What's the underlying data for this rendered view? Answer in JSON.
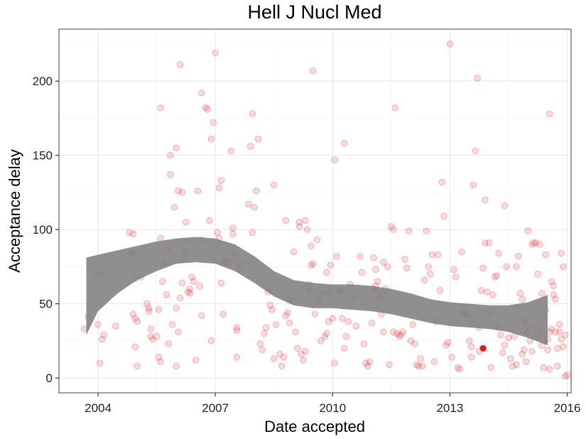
{
  "chart_data": {
    "type": "scatter",
    "title": "Hell J Nucl Med",
    "xlabel": "Date accepted",
    "ylabel": "Acceptance delay",
    "xlim": [
      2003.0,
      2016.1
    ],
    "ylim": [
      -10,
      235
    ],
    "x_ticks": [
      2004,
      2007,
      2010,
      2013,
      2016
    ],
    "x_tick_labels": [
      "2004",
      "2007",
      "2010",
      "2013",
      "2016"
    ],
    "y_ticks": [
      0,
      50,
      100,
      150,
      200
    ],
    "y_tick_labels": [
      "0",
      "50",
      "100",
      "150",
      "200"
    ],
    "grid": true,
    "colors": {
      "points": "#e41a1c",
      "band": "#808080",
      "grid": "#ebebeb",
      "border": "#7f7f7f"
    },
    "highlight_point": {
      "x": 2013.85,
      "y": 20
    },
    "smooth_band": {
      "x": [
        2003.7,
        2004.0,
        2004.5,
        2005.0,
        2005.5,
        2006.0,
        2006.5,
        2007.0,
        2007.5,
        2008.0,
        2008.5,
        2009.0,
        2009.5,
        2010.0,
        2010.5,
        2011.0,
        2011.5,
        2012.0,
        2012.5,
        2013.0,
        2013.5,
        2014.0,
        2014.5,
        2015.0,
        2015.5
      ],
      "upper": [
        81,
        83,
        86,
        89,
        92,
        94,
        95,
        94,
        90,
        82,
        72,
        66,
        64,
        63,
        63,
        62,
        60,
        57,
        53,
        51,
        50,
        49,
        49,
        51,
        56
      ],
      "lower": [
        29,
        45,
        57,
        66,
        72,
        77,
        78,
        77,
        72,
        64,
        55,
        49,
        47,
        47,
        46,
        45,
        43,
        40,
        37,
        35,
        34,
        33,
        31,
        27,
        22
      ]
    },
    "points": [
      [
        2003.65,
        33
      ],
      [
        2003.75,
        41
      ],
      [
        2003.95,
        69
      ],
      [
        2004.0,
        36
      ],
      [
        2004.05,
        10
      ],
      [
        2004.1,
        70
      ],
      [
        2004.1,
        26
      ],
      [
        2004.15,
        29
      ],
      [
        2004.45,
        35
      ],
      [
        2004.8,
        98
      ],
      [
        2004.85,
        84
      ],
      [
        2004.9,
        97
      ],
      [
        2004.9,
        84
      ],
      [
        2004.9,
        43
      ],
      [
        2004.95,
        67
      ],
      [
        2004.95,
        40
      ],
      [
        2004.95,
        21
      ],
      [
        2005.0,
        8
      ],
      [
        2005.0,
        38
      ],
      [
        2005.1,
        68
      ],
      [
        2005.25,
        50
      ],
      [
        2005.3,
        47
      ],
      [
        2005.3,
        45
      ],
      [
        2005.35,
        33
      ],
      [
        2005.35,
        28
      ],
      [
        2005.4,
        26
      ],
      [
        2005.5,
        28
      ],
      [
        2005.55,
        46
      ],
      [
        2005.55,
        14
      ],
      [
        2005.6,
        11
      ],
      [
        2005.6,
        94
      ],
      [
        2005.6,
        182
      ],
      [
        2005.65,
        65
      ],
      [
        2005.7,
        78
      ],
      [
        2005.75,
        56
      ],
      [
        2005.8,
        87
      ],
      [
        2005.8,
        23
      ],
      [
        2005.85,
        150
      ],
      [
        2005.85,
        137
      ],
      [
        2005.9,
        36
      ],
      [
        2005.95,
        115
      ],
      [
        2006.0,
        155
      ],
      [
        2006.0,
        47
      ],
      [
        2006.0,
        8
      ],
      [
        2006.05,
        31
      ],
      [
        2006.05,
        126
      ],
      [
        2006.1,
        211
      ],
      [
        2006.1,
        54
      ],
      [
        2006.15,
        125
      ],
      [
        2006.15,
        64
      ],
      [
        2006.2,
        82
      ],
      [
        2006.25,
        92
      ],
      [
        2006.25,
        105
      ],
      [
        2006.25,
        85
      ],
      [
        2006.3,
        58
      ],
      [
        2006.35,
        60
      ],
      [
        2006.35,
        57
      ],
      [
        2006.4,
        68
      ],
      [
        2006.45,
        65
      ],
      [
        2006.5,
        12
      ],
      [
        2006.55,
        126
      ],
      [
        2006.6,
        62
      ],
      [
        2006.65,
        192
      ],
      [
        2006.65,
        93
      ],
      [
        2006.65,
        42
      ],
      [
        2006.75,
        182
      ],
      [
        2006.8,
        181
      ],
      [
        2006.85,
        106
      ],
      [
        2006.9,
        25
      ],
      [
        2006.9,
        161
      ],
      [
        2006.95,
        172
      ],
      [
        2007.0,
        219
      ],
      [
        2007.05,
        98
      ],
      [
        2007.1,
        94
      ],
      [
        2007.1,
        128
      ],
      [
        2007.15,
        133
      ],
      [
        2007.15,
        64
      ],
      [
        2007.2,
        43
      ],
      [
        2007.25,
        79
      ],
      [
        2007.25,
        78
      ],
      [
        2007.35,
        78
      ],
      [
        2007.4,
        153
      ],
      [
        2007.45,
        101
      ],
      [
        2007.45,
        97
      ],
      [
        2007.5,
        84
      ],
      [
        2007.55,
        32
      ],
      [
        2007.55,
        14
      ],
      [
        2007.55,
        34
      ],
      [
        2007.6,
        74
      ],
      [
        2007.65,
        77
      ],
      [
        2007.85,
        117
      ],
      [
        2007.9,
        156
      ],
      [
        2007.95,
        98
      ],
      [
        2007.95,
        178
      ],
      [
        2008.0,
        115
      ],
      [
        2008.05,
        126
      ],
      [
        2008.1,
        161
      ],
      [
        2008.15,
        23
      ],
      [
        2008.2,
        19
      ],
      [
        2008.25,
        30
      ],
      [
        2008.3,
        34
      ],
      [
        2008.35,
        58
      ],
      [
        2008.4,
        49
      ],
      [
        2008.45,
        46
      ],
      [
        2008.5,
        130
      ],
      [
        2008.5,
        13
      ],
      [
        2008.55,
        36
      ],
      [
        2008.65,
        16
      ],
      [
        2008.7,
        8
      ],
      [
        2008.75,
        14
      ],
      [
        2008.8,
        106
      ],
      [
        2008.8,
        42
      ],
      [
        2008.85,
        44
      ],
      [
        2008.9,
        53
      ],
      [
        2008.9,
        37
      ],
      [
        2009.0,
        85
      ],
      [
        2009.05,
        31
      ],
      [
        2009.1,
        20
      ],
      [
        2009.15,
        105
      ],
      [
        2009.15,
        102
      ],
      [
        2009.2,
        16
      ],
      [
        2009.25,
        12
      ],
      [
        2009.3,
        106
      ],
      [
        2009.3,
        18
      ],
      [
        2009.35,
        100
      ],
      [
        2009.4,
        59
      ],
      [
        2009.4,
        63
      ],
      [
        2009.45,
        76
      ],
      [
        2009.45,
        89
      ],
      [
        2009.5,
        77
      ],
      [
        2009.5,
        207
      ],
      [
        2009.55,
        43
      ],
      [
        2009.6,
        93
      ],
      [
        2009.65,
        53
      ],
      [
        2009.65,
        51
      ],
      [
        2009.7,
        25
      ],
      [
        2009.75,
        57
      ],
      [
        2009.8,
        28
      ],
      [
        2009.85,
        71
      ],
      [
        2009.85,
        30
      ],
      [
        2009.9,
        38
      ],
      [
        2009.9,
        58
      ],
      [
        2009.95,
        76
      ],
      [
        2010.0,
        40
      ],
      [
        2010.05,
        147
      ],
      [
        2010.05,
        10
      ],
      [
        2010.1,
        82
      ],
      [
        2010.15,
        58
      ],
      [
        2010.2,
        59
      ],
      [
        2010.25,
        40
      ],
      [
        2010.3,
        158
      ],
      [
        2010.3,
        20
      ],
      [
        2010.35,
        28
      ],
      [
        2010.4,
        38
      ],
      [
        2010.45,
        63
      ],
      [
        2010.55,
        55
      ],
      [
        2010.6,
        35
      ],
      [
        2010.7,
        82
      ],
      [
        2010.75,
        71
      ],
      [
        2010.8,
        23
      ],
      [
        2010.85,
        10
      ],
      [
        2010.9,
        8
      ],
      [
        2010.95,
        11
      ],
      [
        2011.0,
        37
      ],
      [
        2011.05,
        81
      ],
      [
        2011.05,
        60
      ],
      [
        2011.1,
        62
      ],
      [
        2011.1,
        73
      ],
      [
        2011.15,
        65
      ],
      [
        2011.2,
        54
      ],
      [
        2011.25,
        57
      ],
      [
        2011.25,
        43
      ],
      [
        2011.3,
        78
      ],
      [
        2011.3,
        31
      ],
      [
        2011.35,
        60
      ],
      [
        2011.4,
        75
      ],
      [
        2011.45,
        9
      ],
      [
        2011.5,
        102
      ],
      [
        2011.55,
        100
      ],
      [
        2011.55,
        31
      ],
      [
        2011.6,
        182
      ],
      [
        2011.65,
        30
      ],
      [
        2011.7,
        28
      ],
      [
        2011.75,
        29
      ],
      [
        2011.8,
        31
      ],
      [
        2011.85,
        80
      ],
      [
        2011.9,
        74
      ],
      [
        2011.95,
        99
      ],
      [
        2012.0,
        25
      ],
      [
        2012.05,
        36
      ],
      [
        2012.1,
        23
      ],
      [
        2012.15,
        9
      ],
      [
        2012.2,
        8
      ],
      [
        2012.25,
        13
      ],
      [
        2012.3,
        8
      ],
      [
        2012.35,
        66
      ],
      [
        2012.4,
        99
      ],
      [
        2012.45,
        75
      ],
      [
        2012.5,
        70
      ],
      [
        2012.55,
        83
      ],
      [
        2012.6,
        11
      ],
      [
        2012.65,
        38
      ],
      [
        2012.7,
        83
      ],
      [
        2012.75,
        59
      ],
      [
        2012.8,
        132
      ],
      [
        2012.85,
        109
      ],
      [
        2012.9,
        22
      ],
      [
        2012.95,
        24
      ],
      [
        2013.0,
        225
      ],
      [
        2013.05,
        14
      ],
      [
        2013.1,
        73
      ],
      [
        2013.15,
        68
      ],
      [
        2013.2,
        7
      ],
      [
        2013.25,
        6
      ],
      [
        2013.3,
        85
      ],
      [
        2013.35,
        44
      ],
      [
        2013.4,
        43
      ],
      [
        2013.45,
        42
      ],
      [
        2013.5,
        25
      ],
      [
        2013.55,
        14
      ],
      [
        2013.6,
        130
      ],
      [
        2013.6,
        37
      ],
      [
        2013.65,
        153
      ],
      [
        2013.7,
        202
      ],
      [
        2013.75,
        34
      ],
      [
        2013.8,
        59
      ],
      [
        2013.85,
        74
      ],
      [
        2013.9,
        120
      ],
      [
        2013.95,
        58
      ],
      [
        2014.0,
        44
      ],
      [
        2014.05,
        7
      ],
      [
        2014.1,
        56
      ],
      [
        2014.15,
        68
      ],
      [
        2014.2,
        69
      ],
      [
        2014.25,
        84
      ],
      [
        2014.3,
        29
      ],
      [
        2014.35,
        17
      ],
      [
        2014.4,
        116
      ],
      [
        2014.45,
        75
      ],
      [
        2014.5,
        27
      ],
      [
        2014.55,
        13
      ],
      [
        2014.6,
        8
      ],
      [
        2014.65,
        28
      ],
      [
        2014.7,
        75
      ],
      [
        2014.75,
        82
      ],
      [
        2014.8,
        57
      ],
      [
        2014.85,
        53
      ],
      [
        2014.9,
        39
      ],
      [
        2014.95,
        11
      ],
      [
        2014.95,
        36
      ],
      [
        2015.0,
        31
      ],
      [
        2015.0,
        99
      ],
      [
        2015.05,
        25
      ],
      [
        2015.1,
        90
      ],
      [
        2015.15,
        91
      ],
      [
        2015.2,
        91
      ],
      [
        2015.25,
        70
      ],
      [
        2015.25,
        28
      ],
      [
        2015.3,
        90
      ],
      [
        2015.3,
        31
      ],
      [
        2015.35,
        22
      ],
      [
        2015.4,
        7
      ],
      [
        2015.45,
        83
      ],
      [
        2015.5,
        19
      ],
      [
        2015.5,
        26
      ],
      [
        2015.55,
        178
      ],
      [
        2015.55,
        6
      ],
      [
        2015.55,
        31
      ],
      [
        2015.6,
        33
      ],
      [
        2015.6,
        65
      ],
      [
        2015.65,
        62
      ],
      [
        2015.65,
        56
      ],
      [
        2015.7,
        31
      ],
      [
        2015.7,
        53
      ],
      [
        2015.75,
        8
      ],
      [
        2015.75,
        20
      ],
      [
        2015.8,
        31
      ],
      [
        2015.8,
        36
      ],
      [
        2015.85,
        26
      ],
      [
        2015.85,
        84
      ],
      [
        2015.9,
        75
      ],
      [
        2015.9,
        21
      ],
      [
        2015.95,
        29
      ],
      [
        2015.95,
        1
      ],
      [
        2016.0,
        2
      ],
      [
        2015.35,
        57
      ],
      [
        2015.45,
        46
      ],
      [
        2015.2,
        35
      ],
      [
        2015.1,
        18
      ],
      [
        2014.9,
        19
      ],
      [
        2014.85,
        16
      ],
      [
        2014.7,
        9
      ],
      [
        2014.4,
        22
      ],
      [
        2014.2,
        35
      ],
      [
        2014.0,
        91
      ],
      [
        2013.9,
        91
      ],
      [
        2013.75,
        18
      ],
      [
        2013.55,
        21
      ]
    ]
  }
}
